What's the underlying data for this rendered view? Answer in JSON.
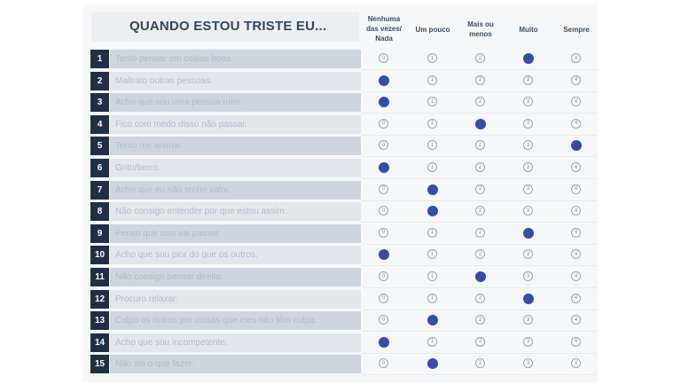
{
  "title": "QUANDO ESTOU TRISTE EU...",
  "columns": [
    "Nenhuma das vezes/ Nada",
    "Um pouco",
    "Mais ou menos",
    "Muito",
    "Sempre"
  ],
  "column_lines": [
    [
      "Nenhuma",
      "das vezes/",
      "Nada"
    ],
    [
      "Um pouco"
    ],
    [
      "Mais ou",
      "menos"
    ],
    [
      "Muito"
    ],
    [
      "Sempre"
    ]
  ],
  "option_labels": [
    "0",
    "1",
    "2",
    "3",
    "4"
  ],
  "items": [
    {
      "number": "1",
      "text": "Tento pensar em coisas boas.",
      "selected": 3
    },
    {
      "number": "2",
      "text": "Maltrato outras pessoas.",
      "selected": 0
    },
    {
      "number": "3",
      "text": "Acho que sou uma pessoa ruim.",
      "selected": 0
    },
    {
      "number": "4",
      "text": "Fico com medo disso não passar.",
      "selected": 2
    },
    {
      "number": "5",
      "text": "Tento me animar.",
      "selected": 4
    },
    {
      "number": "6",
      "text": "Grito/berro.",
      "selected": 0
    },
    {
      "number": "7",
      "text": "Acho que eu não tenho valor.",
      "selected": 1
    },
    {
      "number": "8",
      "text": "Não consigo entender por que estou assim.",
      "selected": 1
    },
    {
      "number": "9",
      "text": "Penso que isso vai passar.",
      "selected": 3
    },
    {
      "number": "10",
      "text": "Acho que sou pior do que os outros.",
      "selected": 0
    },
    {
      "number": "11",
      "text": "Não consigo pensar direito.",
      "selected": 2
    },
    {
      "number": "12",
      "text": "Procuro relaxar.",
      "selected": 3
    },
    {
      "number": "13",
      "text": "Culpo os outros por coisas que eles não têm culpa.",
      "selected": 1
    },
    {
      "number": "14",
      "text": "Acho que sou incompetente.",
      "selected": 0
    },
    {
      "number": "15",
      "text": "Não sei o que fazer.",
      "selected": 1
    }
  ]
}
